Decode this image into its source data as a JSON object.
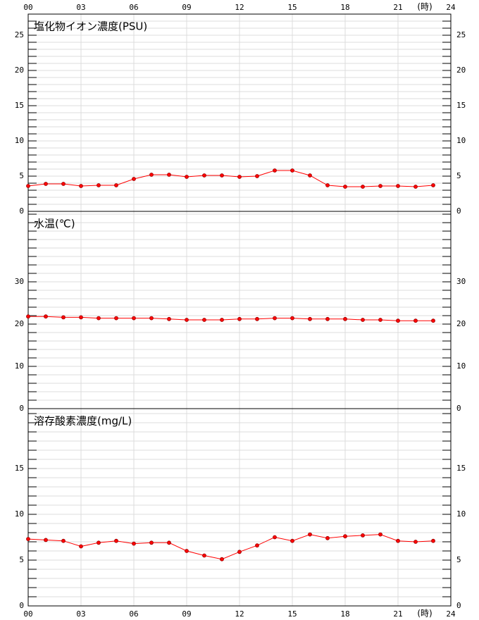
{
  "chart_data": [
    {
      "type": "line",
      "title": "塩化物イオン濃度(PSU)",
      "color": "#ff0000",
      "x": [
        0,
        1,
        2,
        3,
        4,
        5,
        6,
        7,
        8,
        9,
        10,
        11,
        12,
        13,
        14,
        15,
        16,
        17,
        18,
        19,
        20,
        21,
        22,
        23
      ],
      "values": [
        3.6,
        3.9,
        3.9,
        3.6,
        3.7,
        3.7,
        4.6,
        5.2,
        5.2,
        4.9,
        5.1,
        5.1,
        4.9,
        5.0,
        5.8,
        5.8,
        5.1,
        3.7,
        3.5,
        3.5,
        3.6,
        3.6,
        3.5,
        3.7
      ],
      "xlim": [
        0,
        24
      ],
      "xticks": [
        {
          "value": 0,
          "label": "00"
        },
        {
          "value": 3,
          "label": "03"
        },
        {
          "value": 6,
          "label": "06"
        },
        {
          "value": 9,
          "label": "09"
        },
        {
          "value": 12,
          "label": "12"
        },
        {
          "value": 15,
          "label": "15"
        },
        {
          "value": 18,
          "label": "18"
        },
        {
          "value": 21,
          "label": "21"
        },
        {
          "value": 24,
          "label": "24"
        }
      ],
      "x_label_position": "top",
      "x_unit": "(時)",
      "ylim": [
        0,
        28
      ],
      "yticks": [
        0,
        5,
        10,
        15,
        20,
        25
      ],
      "minor_tick_step": 1,
      "grid": true
    },
    {
      "type": "line",
      "title": "水温(℃)",
      "color": "#ff0000",
      "x": [
        0,
        1,
        2,
        3,
        4,
        5,
        6,
        7,
        8,
        9,
        10,
        11,
        12,
        13,
        14,
        15,
        16,
        17,
        18,
        19,
        20,
        21,
        22,
        23
      ],
      "values": [
        21.8,
        21.8,
        21.6,
        21.6,
        21.4,
        21.4,
        21.4,
        21.4,
        21.2,
        21.0,
        21.0,
        21.0,
        21.2,
        21.2,
        21.4,
        21.4,
        21.2,
        21.2,
        21.2,
        21.0,
        21.0,
        20.8,
        20.8,
        20.8
      ],
      "xlim": [
        0,
        24
      ],
      "xticks": [
        0,
        3,
        6,
        9,
        12,
        15,
        18,
        21,
        24
      ],
      "ylim": [
        0,
        46.67
      ],
      "yticks": [
        0,
        10,
        20,
        30
      ],
      "minor_tick_step": 2,
      "grid": true
    },
    {
      "type": "line",
      "title": "溶存酸素濃度(mg/L)",
      "color": "#ff0000",
      "x": [
        0,
        1,
        2,
        3,
        4,
        5,
        6,
        7,
        8,
        9,
        10,
        11,
        12,
        13,
        14,
        15,
        16,
        17,
        18,
        19,
        20,
        21,
        22,
        23
      ],
      "values": [
        7.3,
        7.2,
        7.1,
        6.5,
        6.9,
        7.1,
        6.8,
        6.9,
        6.9,
        6.0,
        5.5,
        5.1,
        5.9,
        6.6,
        7.5,
        7.1,
        7.8,
        7.4,
        7.6,
        7.7,
        7.8,
        7.1,
        7.0,
        7.1
      ],
      "xlim": [
        0,
        24
      ],
      "xticks": [
        {
          "value": 0,
          "label": "00"
        },
        {
          "value": 3,
          "label": "03"
        },
        {
          "value": 6,
          "label": "06"
        },
        {
          "value": 9,
          "label": "09"
        },
        {
          "value": 12,
          "label": "12"
        },
        {
          "value": 15,
          "label": "15"
        },
        {
          "value": 18,
          "label": "18"
        },
        {
          "value": 21,
          "label": "21"
        },
        {
          "value": 24,
          "label": "24"
        }
      ],
      "x_label_position": "bottom",
      "x_unit": "(時)",
      "ylim": [
        0,
        21.54
      ],
      "yticks": [
        0,
        5,
        10,
        15
      ],
      "minor_tick_step": 1,
      "grid": true
    }
  ]
}
